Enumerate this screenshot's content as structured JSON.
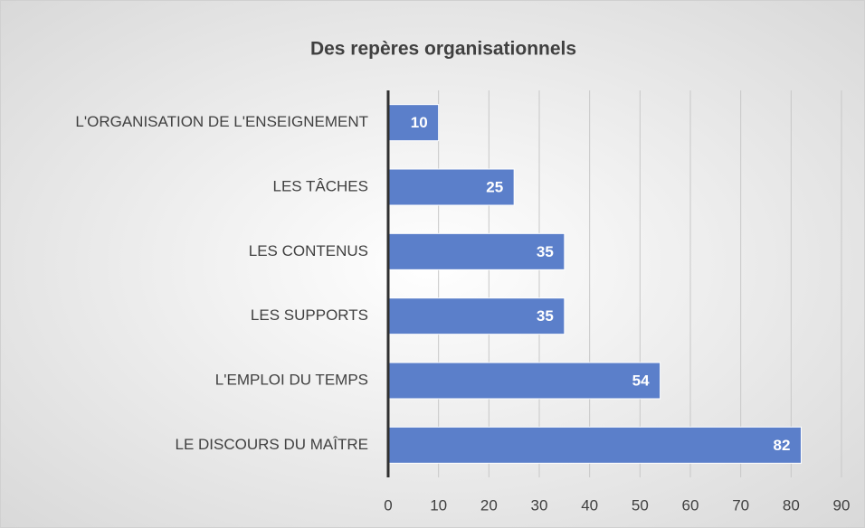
{
  "chart_data": {
    "type": "bar",
    "orientation": "horizontal",
    "title": "Des repères organisationnels",
    "categories": [
      "L'ORGANISATION DE L'ENSEIGNEMENT",
      "LES TÂCHES",
      "LES CONTENUS",
      "LES SUPPORTS",
      "L'EMPLOI DU TEMPS",
      "LE DISCOURS DU MAÎTRE"
    ],
    "values": [
      10,
      25,
      35,
      35,
      54,
      82
    ],
    "color": "#5b7fca",
    "xlim": [
      0,
      90
    ],
    "xticks": [
      0,
      10,
      20,
      30,
      40,
      50,
      60,
      70,
      80,
      90
    ],
    "grid": true
  }
}
